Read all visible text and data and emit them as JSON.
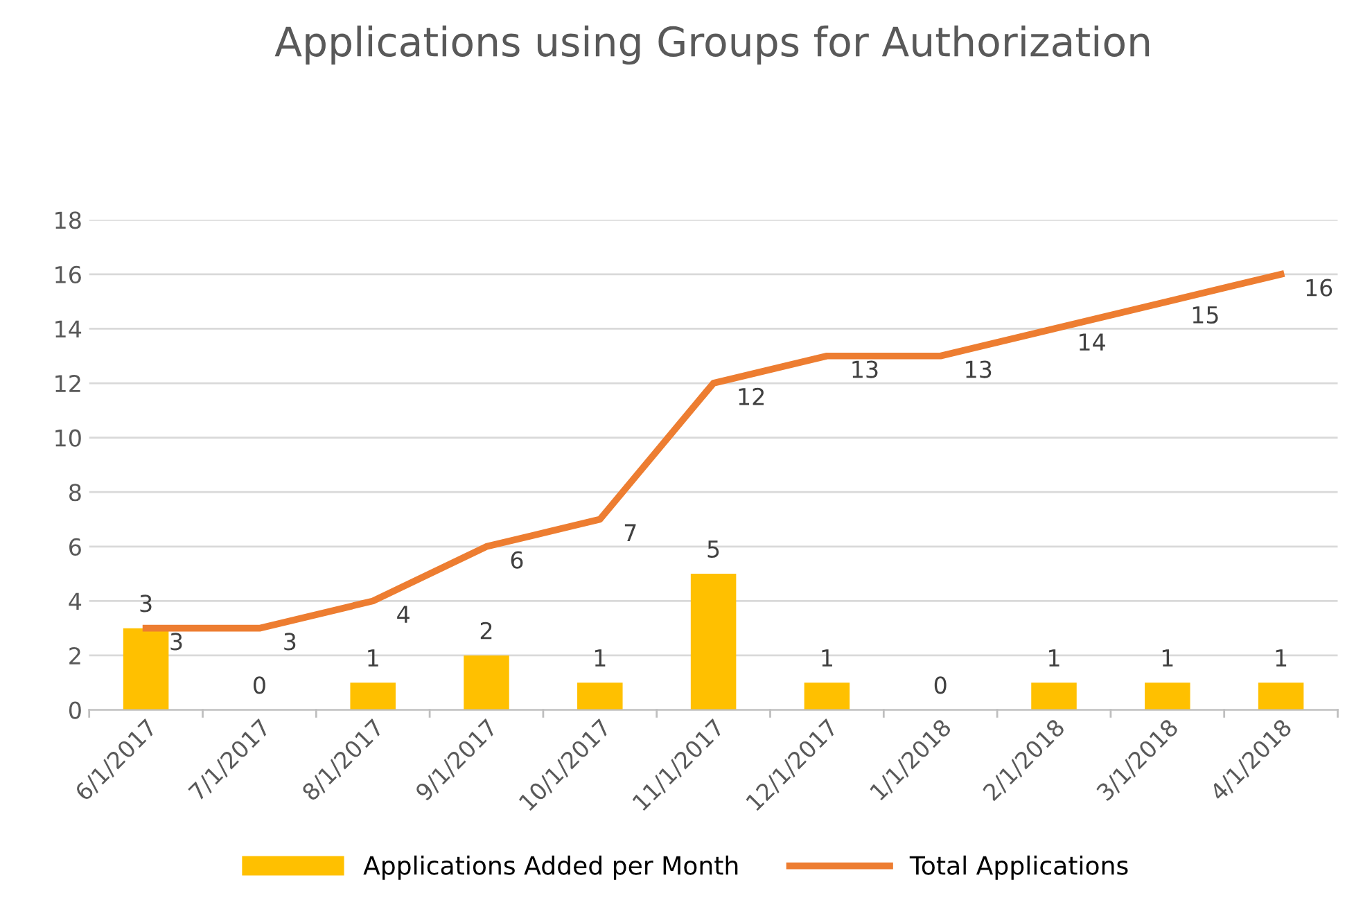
{
  "chart_data": {
    "type": "bar",
    "title": "Applications using Groups for Authorization",
    "categories": [
      "6/1/2017",
      "7/1/2017",
      "8/1/2017",
      "9/1/2017",
      "10/1/2017",
      "11/1/2017",
      "12/1/2017",
      "1/1/2018",
      "2/1/2018",
      "3/1/2018",
      "4/1/2018"
    ],
    "series": [
      {
        "name": "Applications Added per Month",
        "color": "#ffc000",
        "values": [
          3,
          0,
          1,
          2,
          1,
          5,
          1,
          0,
          1,
          1,
          1
        ]
      },
      {
        "name": "Total Applications",
        "type": "line",
        "color": "#ed7d31",
        "values": [
          3,
          3,
          4,
          6,
          7,
          12,
          13,
          13,
          14,
          15,
          16
        ]
      }
    ],
    "ylim": [
      0,
      18
    ],
    "yticks": [
      0,
      2,
      4,
      6,
      8,
      10,
      12,
      14,
      16,
      18
    ],
    "grid": "y",
    "legend": "bottom",
    "data_labels": true,
    "marker": "none",
    "line_style": "solid"
  }
}
